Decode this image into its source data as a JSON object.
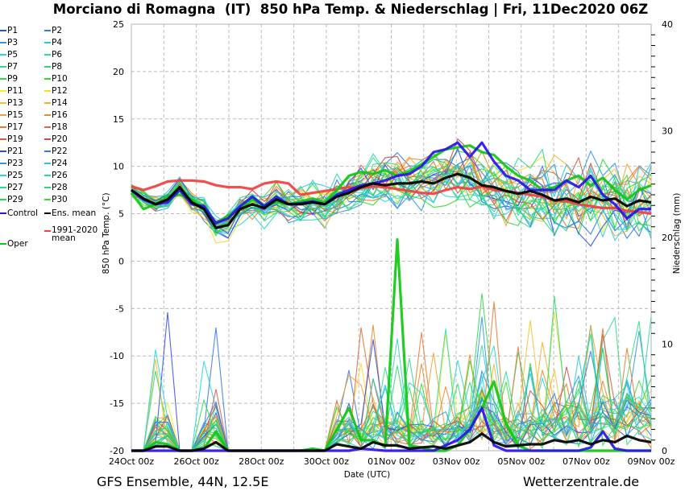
{
  "header": {
    "title": "Morciano di Romagna  (IT)  850 hPa Temp. & Niederschlag | Fri, 11Dec2020 06Z"
  },
  "footer": {
    "left": "GFS Ensemble, 44N, 12.5E",
    "right": "Wetterzentrale.de"
  },
  "legend": [
    {
      "label": "P1",
      "color": "#2b4de8"
    },
    {
      "label": "P2",
      "color": "#2f7ae8"
    },
    {
      "label": "P3",
      "color": "#2f98e6"
    },
    {
      "label": "P4",
      "color": "#2cc0e6"
    },
    {
      "label": "P5",
      "color": "#27d4e0"
    },
    {
      "label": "P6",
      "color": "#2ad8b0"
    },
    {
      "label": "P7",
      "color": "#2ddc8a"
    },
    {
      "label": "P8",
      "color": "#2bd870"
    },
    {
      "label": "P9",
      "color": "#2bdc48"
    },
    {
      "label": "P10",
      "color": "#2ee02a"
    },
    {
      "label": "P11",
      "color": "#f2ec2a"
    },
    {
      "label": "P12",
      "color": "#f2dc34"
    },
    {
      "label": "P13",
      "color": "#f2c22e"
    },
    {
      "label": "P14",
      "color": "#f2b02e"
    },
    {
      "label": "P15",
      "color": "#f0a030"
    },
    {
      "label": "P16",
      "color": "#e68a2e"
    },
    {
      "label": "P17",
      "color": "#e47a2e"
    },
    {
      "label": "P18",
      "color": "#dc6a42"
    },
    {
      "label": "P19",
      "color": "#d45a46"
    },
    {
      "label": "P20",
      "color": "#c84848"
    },
    {
      "label": "P21",
      "color": "#2b4de8"
    },
    {
      "label": "P22",
      "color": "#2f7ae8"
    },
    {
      "label": "P23",
      "color": "#2f98e6"
    },
    {
      "label": "P24",
      "color": "#2cc0e6"
    },
    {
      "label": "P25",
      "color": "#27d4e0"
    },
    {
      "label": "P26",
      "color": "#2ad8b0"
    },
    {
      "label": "P27",
      "color": "#2ddc8a"
    },
    {
      "label": "P28",
      "color": "#2bd870"
    },
    {
      "label": "P29",
      "color": "#2bdc48"
    },
    {
      "label": "P30",
      "color": "#2ee02a"
    },
    {
      "label": "Control",
      "color": "#2a14e8"
    },
    {
      "label": "Ens. mean",
      "color": "#000000"
    },
    {
      "label": "1991-2020\nmean",
      "color": "#f04040"
    },
    {
      "label": "Oper",
      "color": "#10c810"
    }
  ],
  "chart_data": {
    "type": "line",
    "title": "Morciano di Romagna  (IT)  850 hPa Temp. & Niederschlag | Fri, 11Dec2020 06Z",
    "xlabel": "Date (UTC)",
    "ylabel": "850 hPa Temp. (°C)",
    "y2label": "Niederschlag (mm)",
    "x_ticks": [
      "24Oct 00z",
      "26Oct 00z",
      "28Oct 00z",
      "30Oct 00z",
      "01Nov 00z",
      "03Nov 00z",
      "05Nov 00z",
      "07Nov 00z",
      "09Nov 00z"
    ],
    "x_range_days": [
      0,
      16
    ],
    "x_step_hours": 12,
    "ylim": [
      -20,
      25
    ],
    "y_ticks": [
      "25",
      "20",
      "15",
      "10",
      "5",
      "0",
      "-5",
      "-10",
      "-15",
      "-20"
    ],
    "y2lim": [
      0,
      40
    ],
    "y2_ticks": [
      "40",
      "30",
      "20",
      "10",
      "0"
    ],
    "grid": true,
    "legend_position": "left-outside",
    "series": [
      {
        "name": "Control",
        "kind": "temp",
        "color": "#2a14e8",
        "width": 3.2,
        "values": [
          7.5,
          6.5,
          6.0,
          6.2,
          7.5,
          6.0,
          5.8,
          4.0,
          4.5,
          5.8,
          6.8,
          5.8,
          6.8,
          6.0,
          6.1,
          6.3,
          6.0,
          7.0,
          7.5,
          8.0,
          8.2,
          8.5,
          9.0,
          9.2,
          10.0,
          11.5,
          11.8,
          12.5,
          11.0,
          12.5,
          10.5,
          9.0,
          8.5,
          7.5,
          7.5,
          7.5,
          8.5,
          7.8,
          9.0,
          7.0,
          6.0,
          4.5,
          5.5,
          5.5
        ]
      },
      {
        "name": "Ens. mean",
        "kind": "temp",
        "color": "#000000",
        "width": 3.2,
        "values": [
          7.5,
          6.6,
          6.0,
          6.5,
          7.8,
          6.2,
          5.5,
          3.5,
          3.8,
          5.5,
          6.0,
          5.6,
          6.5,
          6.0,
          6.0,
          6.2,
          6.0,
          6.8,
          7.2,
          7.8,
          8.2,
          8.0,
          8.2,
          8.2,
          8.4,
          8.2,
          8.8,
          9.2,
          8.8,
          8.0,
          7.8,
          7.4,
          7.1,
          7.4,
          7.0,
          6.4,
          6.6,
          6.2,
          6.8,
          6.4,
          6.6,
          5.8,
          6.4,
          6.2
        ]
      },
      {
        "name": "1991-2020 mean",
        "kind": "temp",
        "color": "#f04040",
        "width": 3.2,
        "values": [
          7.9,
          7.5,
          7.9,
          8.4,
          8.5,
          8.5,
          8.4,
          8.0,
          7.8,
          7.8,
          7.6,
          8.2,
          8.4,
          8.2,
          7.0,
          7.2,
          7.4,
          7.6,
          7.8,
          7.7,
          7.9,
          7.8,
          7.6,
          7.4,
          7.2,
          7.1,
          7.5,
          7.8,
          7.6,
          7.9,
          7.5,
          7.4,
          7.2,
          7.0,
          6.8,
          6.4,
          6.3,
          6.0,
          5.8,
          5.6,
          5.6,
          5.3,
          5.2,
          5.0
        ]
      },
      {
        "name": "Oper",
        "kind": "temp",
        "color": "#10c810",
        "width": 3.2,
        "values": [
          7.2,
          5.5,
          6.0,
          6.8,
          7.0,
          6.5,
          5.5,
          4.0,
          4.8,
          5.5,
          6.5,
          5.8,
          6.2,
          6.0,
          6.3,
          6.6,
          6.2,
          7.5,
          9.0,
          9.4,
          9.2,
          9.6,
          9.0,
          9.5,
          10.2,
          11.0,
          11.8,
          12.0,
          12.2,
          11.5,
          11.2,
          10.0,
          9.0,
          8.5,
          7.5,
          7.8,
          8.5,
          9.0,
          8.0,
          8.8,
          7.5,
          6.5,
          7.5,
          8.0
        ]
      },
      {
        "name": "Control precip",
        "kind": "precip",
        "color": "#2a14e8",
        "width": 3.2,
        "values": [
          0,
          0,
          0,
          0,
          0,
          0,
          0,
          0,
          0,
          0,
          0,
          0,
          0,
          0,
          0,
          0,
          0,
          0,
          0,
          0.2,
          0.1,
          0,
          0,
          0,
          0,
          0,
          0.5,
          1.0,
          2.0,
          4.0,
          0.5,
          0,
          0,
          0,
          0,
          0,
          0,
          0,
          0.3,
          1.8,
          0.2,
          0,
          0,
          0
        ]
      },
      {
        "name": "Ens. mean precip",
        "kind": "precip",
        "color": "#000000",
        "width": 3.2,
        "values": [
          0,
          0,
          0.4,
          0.4,
          0,
          0,
          0.2,
          0.8,
          0,
          0,
          0,
          0,
          0,
          0,
          0,
          0,
          0,
          0.6,
          0.4,
          0.2,
          0.8,
          0.5,
          0.5,
          0.2,
          0.3,
          0.4,
          0.2,
          0.5,
          0.8,
          1.6,
          0.8,
          0.4,
          0.5,
          0.6,
          0.6,
          1.0,
          0.8,
          1.0,
          0.6,
          1.0,
          0.8,
          1.4,
          1.0,
          0.8
        ]
      },
      {
        "name": "Oper precip",
        "kind": "precip",
        "color": "#10c810",
        "width": 3.2,
        "values": [
          0,
          0,
          0.8,
          0.6,
          0,
          0,
          0.2,
          1.8,
          0,
          0,
          0,
          0,
          0,
          0,
          0,
          0.2,
          0,
          2.0,
          4.0,
          1.0,
          1.0,
          0.4,
          19.8,
          0.5,
          0.3,
          0,
          0,
          0.5,
          2.0,
          4.0,
          6.5,
          2.5,
          0.5,
          0,
          0,
          0,
          0,
          0,
          0,
          0,
          0,
          0,
          0,
          0
        ]
      }
    ],
    "members_note": "30 perturbed members (P1–P30) plotted as thin lines with spread approx. 0–15 °C and precipitation spikes up to about 20 mm"
  }
}
